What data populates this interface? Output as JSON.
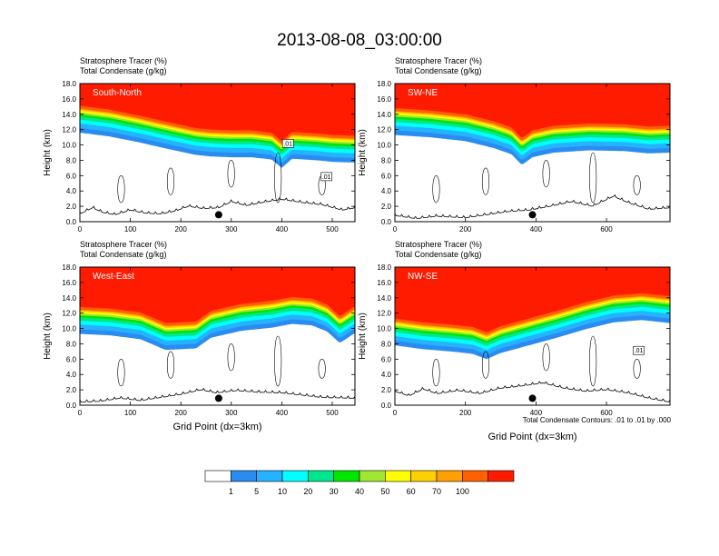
{
  "figure": {
    "title": "2013-08-08_03:00:00",
    "footnote": "Total Condensate Contours: .01 to .01 by .000"
  },
  "colors": {
    "bands": [
      "#ffffff",
      "#2a8cf0",
      "#25b2ff",
      "#00ffff",
      "#00e68c",
      "#00e600",
      "#a0e632",
      "#ffff00",
      "#ffd000",
      "#ffa000",
      "#ff6000",
      "#ff1b00"
    ],
    "ground_line": "#000000",
    "contour_line": "#000000"
  },
  "colorbar": {
    "labels": [
      "1",
      "5",
      "10",
      "20",
      "30",
      "40",
      "50",
      "60",
      "70",
      "100"
    ]
  },
  "chart_data": [
    {
      "type": "contour",
      "panel": "South-North",
      "label_left_1": "Stratosphere Tracer",
      "label_right_1": "(%)",
      "label_left_2": "Total Condensate",
      "label_right_2": "(g/kg)",
      "ylabel": "Height (km)",
      "xlabel": "",
      "xlim": [
        0,
        545
      ],
      "ylim": [
        0,
        18
      ],
      "xticks": [
        0,
        100,
        200,
        300,
        400,
        500
      ],
      "yticks": [
        0.0,
        2.0,
        4.0,
        6.0,
        8.0,
        10.0,
        12.0,
        14.0,
        16.0,
        18.0
      ],
      "contour_labels": [
        ".01",
        ".01"
      ],
      "tropopause_km": [
        [
          0,
          14.8
        ],
        [
          60,
          14.3
        ],
        [
          120,
          13.5
        ],
        [
          180,
          12.6
        ],
        [
          230,
          11.9
        ],
        [
          260,
          11.7
        ],
        [
          300,
          11.6
        ],
        [
          340,
          11.6
        ],
        [
          380,
          11.3
        ],
        [
          400,
          10.2
        ],
        [
          420,
          11.4
        ],
        [
          470,
          11.2
        ],
        [
          500,
          11.0
        ],
        [
          545,
          10.9
        ]
      ],
      "terrain_km": [
        [
          0,
          1.0
        ],
        [
          25,
          1.8
        ],
        [
          45,
          1.2
        ],
        [
          70,
          0.9
        ],
        [
          100,
          1.5
        ],
        [
          130,
          1.1
        ],
        [
          160,
          1.0
        ],
        [
          190,
          1.4
        ],
        [
          215,
          2.0
        ],
        [
          245,
          1.7
        ],
        [
          275,
          1.8
        ],
        [
          300,
          2.6
        ],
        [
          330,
          2.1
        ],
        [
          370,
          2.6
        ],
        [
          400,
          2.9
        ],
        [
          440,
          2.5
        ],
        [
          480,
          2.2
        ],
        [
          520,
          1.5
        ],
        [
          545,
          1.8
        ]
      ],
      "marker_x": 275
    },
    {
      "type": "contour",
      "panel": "SW-NE",
      "label_left_1": "Stratosphere Tracer",
      "label_right_1": "(%)",
      "label_left_2": "Total Condensate",
      "label_right_2": "(g/kg)",
      "ylabel": "Height (km)",
      "xlabel": "",
      "xlim": [
        0,
        780
      ],
      "ylim": [
        0,
        18
      ],
      "xticks": [
        0,
        200,
        400,
        600
      ],
      "yticks": [
        0.0,
        2.0,
        4.0,
        6.0,
        8.0,
        10.0,
        12.0,
        14.0,
        16.0,
        18.0
      ],
      "contour_labels": [],
      "tropopause_km": [
        [
          0,
          14.5
        ],
        [
          100,
          14.2
        ],
        [
          200,
          13.7
        ],
        [
          280,
          12.8
        ],
        [
          330,
          12.0
        ],
        [
          360,
          10.6
        ],
        [
          390,
          11.6
        ],
        [
          450,
          12.2
        ],
        [
          550,
          12.5
        ],
        [
          650,
          12.4
        ],
        [
          720,
          12.1
        ],
        [
          780,
          12.2
        ]
      ],
      "terrain_km": [
        [
          0,
          0.8
        ],
        [
          60,
          0.4
        ],
        [
          120,
          0.7
        ],
        [
          200,
          0.5
        ],
        [
          260,
          0.9
        ],
        [
          320,
          1.3
        ],
        [
          380,
          1.5
        ],
        [
          440,
          2.0
        ],
        [
          500,
          2.6
        ],
        [
          560,
          2.0
        ],
        [
          620,
          3.3
        ],
        [
          660,
          2.5
        ],
        [
          720,
          1.6
        ],
        [
          780,
          1.8
        ]
      ],
      "marker_x": 390
    },
    {
      "type": "contour",
      "panel": "West-East",
      "label_left_1": "Stratosphere Tracer",
      "label_right_1": "(%)",
      "label_left_2": "Total Condensate",
      "label_right_2": "(g/kg)",
      "ylabel": "Height (km)",
      "xlabel": "Grid Point (dx=3km)",
      "xlim": [
        0,
        545
      ],
      "ylim": [
        0,
        18
      ],
      "xticks": [
        0,
        100,
        200,
        300,
        400,
        500
      ],
      "yticks": [
        0.0,
        2.0,
        4.0,
        6.0,
        8.0,
        10.0,
        12.0,
        14.0,
        16.0,
        18.0
      ],
      "contour_labels": [],
      "tropopause_km": [
        [
          0,
          12.5
        ],
        [
          60,
          12.3
        ],
        [
          120,
          11.8
        ],
        [
          170,
          10.4
        ],
        [
          230,
          10.6
        ],
        [
          260,
          12.0
        ],
        [
          320,
          12.9
        ],
        [
          380,
          13.3
        ],
        [
          420,
          13.8
        ],
        [
          460,
          13.6
        ],
        [
          490,
          12.8
        ],
        [
          515,
          11.3
        ],
        [
          545,
          12.6
        ]
      ],
      "terrain_km": [
        [
          0,
          0.4
        ],
        [
          40,
          0.5
        ],
        [
          80,
          0.9
        ],
        [
          120,
          0.6
        ],
        [
          160,
          1.0
        ],
        [
          200,
          1.4
        ],
        [
          240,
          2.0
        ],
        [
          270,
          1.6
        ],
        [
          310,
          1.9
        ],
        [
          350,
          1.7
        ],
        [
          400,
          1.6
        ],
        [
          440,
          1.3
        ],
        [
          480,
          1.0
        ],
        [
          545,
          0.9
        ]
      ],
      "marker_x": 275
    },
    {
      "type": "contour",
      "panel": "NW-SE",
      "label_left_1": "Stratosphere Tracer",
      "label_right_1": "(%)",
      "label_left_2": "Total Condensate",
      "label_right_2": "(g/kg)",
      "ylabel": "Height (km)",
      "xlabel": "Grid Point (dx=3km)",
      "xlim": [
        0,
        780
      ],
      "ylim": [
        0,
        18
      ],
      "xticks": [
        0,
        200,
        400,
        600
      ],
      "yticks": [
        0.0,
        2.0,
        4.0,
        6.0,
        8.0,
        10.0,
        12.0,
        14.0,
        16.0,
        18.0
      ],
      "contour_labels": [
        ".01"
      ],
      "tropopause_km": [
        [
          0,
          11.0
        ],
        [
          80,
          10.5
        ],
        [
          160,
          10.2
        ],
        [
          220,
          9.9
        ],
        [
          260,
          9.2
        ],
        [
          300,
          10.0
        ],
        [
          380,
          11.0
        ],
        [
          460,
          12.0
        ],
        [
          540,
          13.1
        ],
        [
          620,
          14.0
        ],
        [
          700,
          14.3
        ],
        [
          780,
          13.9
        ]
      ],
      "terrain_km": [
        [
          0,
          1.8
        ],
        [
          40,
          1.2
        ],
        [
          80,
          2.1
        ],
        [
          120,
          1.5
        ],
        [
          180,
          1.9
        ],
        [
          240,
          1.5
        ],
        [
          300,
          2.2
        ],
        [
          360,
          2.5
        ],
        [
          420,
          2.9
        ],
        [
          480,
          2.2
        ],
        [
          540,
          1.8
        ],
        [
          600,
          2.0
        ],
        [
          660,
          1.6
        ],
        [
          720,
          0.9
        ],
        [
          780,
          0.4
        ]
      ],
      "marker_x": 390
    }
  ]
}
